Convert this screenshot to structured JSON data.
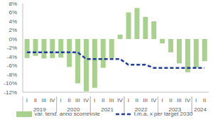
{
  "chart_data": {
    "type": "bar",
    "categories": [
      "I",
      "II",
      "III",
      "IV",
      "I",
      "II",
      "III",
      "IV",
      "I",
      "II",
      "III",
      "IV",
      "I",
      "II",
      "III",
      "IV",
      "I",
      "II",
      "III",
      "IV",
      "I",
      "II"
    ],
    "x_groups": [
      {
        "label": "2019",
        "count": 4
      },
      {
        "label": "2020",
        "count": 4
      },
      {
        "label": "2021",
        "count": 4
      },
      {
        "label": "2022",
        "count": 4
      },
      {
        "label": "2023",
        "count": 4
      },
      {
        "label": "2024",
        "count": 2
      }
    ],
    "series": [
      {
        "name": "var. tend. anno scorrevole",
        "type": "bar",
        "color": "#a9d18e",
        "values": [
          -4.3,
          -3.8,
          -4.4,
          -4.3,
          -4.2,
          -6.3,
          -10,
          -11.8,
          -11,
          -6.5,
          -4.3,
          1,
          6,
          7,
          5,
          4,
          -1,
          -3,
          -5.5,
          -7.5,
          -6.5,
          -5
        ]
      },
      {
        "name": "t.m.a. x per target 2030",
        "type": "line",
        "color": "#1f3d99",
        "line_style": "dashed",
        "values": [
          -3,
          -3,
          -3,
          -3,
          -3,
          -3,
          -3,
          -4.5,
          -4.5,
          -4.5,
          -4.5,
          -4.5,
          -5.8,
          -5.8,
          -5.8,
          -6.5,
          -6.5,
          -6.5,
          -6.5,
          -6.5,
          -6.5,
          -6.5
        ]
      }
    ],
    "ylim": [
      -12,
      8
    ],
    "yticks": [
      {
        "value": -12,
        "label": "-12%"
      },
      {
        "value": -10,
        "label": "-10%"
      },
      {
        "value": -8,
        "label": "-8%"
      },
      {
        "value": -6,
        "label": "-6%"
      },
      {
        "value": -4,
        "label": "-4%"
      },
      {
        "value": -2,
        "label": "-2%"
      },
      {
        "value": 0,
        "label": "0%"
      },
      {
        "value": 2,
        "label": "2%"
      },
      {
        "value": 4,
        "label": "4%"
      },
      {
        "value": 6,
        "label": "6%"
      },
      {
        "value": 8,
        "label": "8%"
      }
    ],
    "grid": false,
    "legend": "bottom"
  }
}
